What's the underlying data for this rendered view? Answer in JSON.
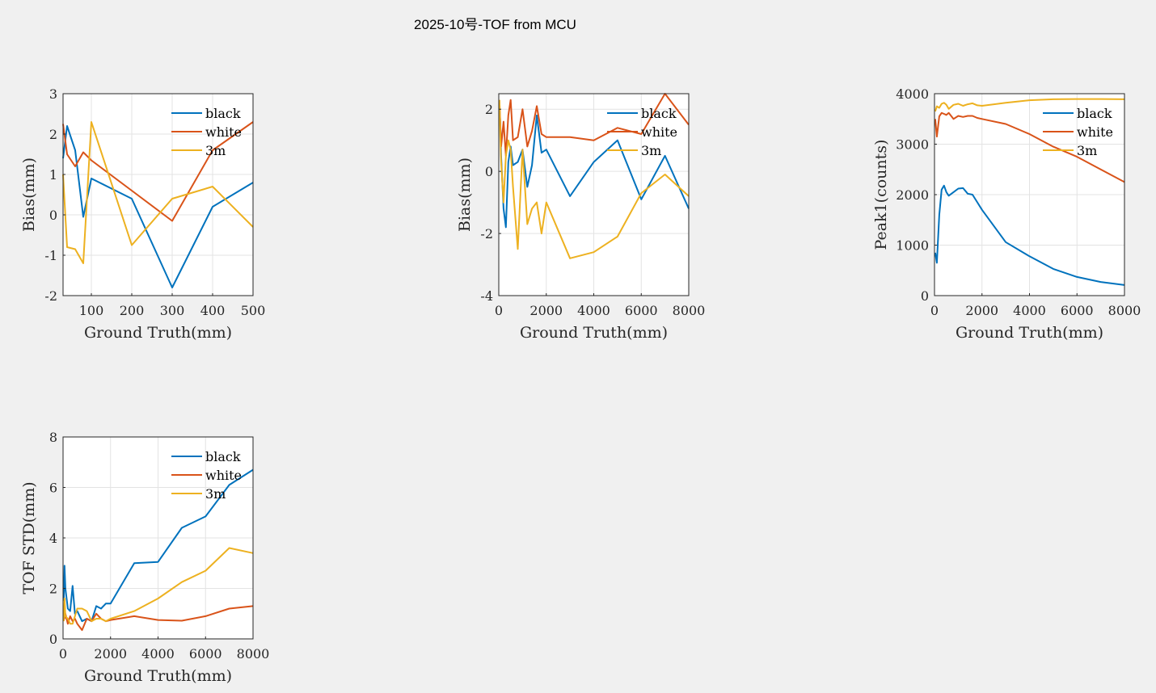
{
  "figure": {
    "title": "2025-10号-TOF from MCU"
  },
  "colors": {
    "black": "#0072BD",
    "white": "#D95319",
    "3m": "#EDB120"
  },
  "chart_data": [
    {
      "type": "line",
      "xlabel": "Ground Truth(mm)",
      "ylabel": "Bias(mm)",
      "xlim": [
        30,
        500
      ],
      "ylim": [
        -2,
        3
      ],
      "xticks": [
        100,
        200,
        300,
        400,
        500
      ],
      "yticks": [
        -2,
        -1,
        0,
        1,
        2,
        3
      ],
      "grid": true,
      "legend": "top-right",
      "series": [
        {
          "name": "black",
          "x": [
            30,
            40,
            60,
            80,
            100,
            200,
            300,
            400,
            500
          ],
          "y": [
            1.4,
            2.2,
            1.6,
            -0.05,
            0.9,
            0.4,
            -1.8,
            0.2,
            0.8
          ]
        },
        {
          "name": "white",
          "x": [
            30,
            40,
            60,
            80,
            100,
            200,
            300,
            400,
            500
          ],
          "y": [
            2.25,
            1.5,
            1.2,
            1.55,
            1.35,
            0.6,
            -0.15,
            1.6,
            2.3
          ]
        },
        {
          "name": "3m",
          "x": [
            30,
            40,
            60,
            80,
            100,
            200,
            300,
            400,
            500
          ],
          "y": [
            1.0,
            -0.8,
            -0.85,
            -1.2,
            2.3,
            -0.75,
            0.4,
            0.7,
            -0.3
          ]
        }
      ]
    },
    {
      "type": "line",
      "xlabel": "Ground Truth(mm)",
      "ylabel": "Bias(mm)",
      "xlim": [
        0,
        8000
      ],
      "ylim": [
        -4,
        2.5
      ],
      "xticks": [
        0,
        2000,
        4000,
        6000,
        8000
      ],
      "yticks": [
        -4,
        -2,
        0,
        2
      ],
      "grid": true,
      "legend": "top-right",
      "series": [
        {
          "name": "black",
          "x": [
            30,
            60,
            100,
            200,
            300,
            400,
            500,
            600,
            800,
            1000,
            1200,
            1400,
            1600,
            1800,
            2000,
            3000,
            4000,
            5000,
            6000,
            7000,
            8000
          ],
          "y": [
            2.0,
            1.6,
            0.5,
            -1.2,
            -1.8,
            0.3,
            0.8,
            0.2,
            0.3,
            0.7,
            -0.5,
            0.2,
            1.8,
            0.6,
            0.7,
            -0.8,
            0.3,
            1.0,
            -0.9,
            0.5,
            -1.2
          ]
        },
        {
          "name": "white",
          "x": [
            30,
            60,
            100,
            200,
            300,
            400,
            500,
            600,
            800,
            1000,
            1200,
            1400,
            1600,
            1800,
            2000,
            3000,
            4000,
            5000,
            6000,
            7000,
            8000
          ],
          "y": [
            2.2,
            1.6,
            0.8,
            1.6,
            0.5,
            1.8,
            2.3,
            1.0,
            1.1,
            2.0,
            0.8,
            1.3,
            2.1,
            1.2,
            1.1,
            1.1,
            1.0,
            1.4,
            1.2,
            2.5,
            1.5
          ]
        },
        {
          "name": "3m",
          "x": [
            30,
            60,
            100,
            200,
            300,
            400,
            500,
            600,
            800,
            1000,
            1200,
            1400,
            1600,
            1800,
            2000,
            3000,
            4000,
            5000,
            6000,
            7000,
            8000
          ],
          "y": [
            2.3,
            1.2,
            0.3,
            -1.0,
            0.5,
            1.0,
            0.7,
            -0.5,
            -2.5,
            0.7,
            -1.7,
            -1.2,
            -1.0,
            -2.0,
            -1.0,
            -2.8,
            -2.6,
            -2.1,
            -0.7,
            -0.1,
            -0.8
          ]
        }
      ]
    },
    {
      "type": "line",
      "xlabel": "Ground Truth(mm)",
      "ylabel": "Peak1(counts)",
      "xlim": [
        0,
        8000
      ],
      "ylim": [
        0,
        4000
      ],
      "xticks": [
        0,
        2000,
        4000,
        6000,
        8000
      ],
      "yticks": [
        0,
        1000,
        2000,
        3000,
        4000
      ],
      "grid": true,
      "legend": "top-right",
      "series": [
        {
          "name": "black",
          "x": [
            30,
            100,
            200,
            300,
            400,
            500,
            600,
            800,
            1000,
            1200,
            1400,
            1600,
            1800,
            2000,
            3000,
            4000,
            5000,
            6000,
            7000,
            8000
          ],
          "y": [
            850,
            650,
            1600,
            2100,
            2180,
            2050,
            1980,
            2050,
            2120,
            2130,
            2020,
            2000,
            1850,
            1700,
            1060,
            780,
            530,
            370,
            270,
            210
          ]
        },
        {
          "name": "white",
          "x": [
            30,
            100,
            200,
            300,
            400,
            500,
            600,
            800,
            1000,
            1200,
            1400,
            1600,
            1800,
            2000,
            3000,
            4000,
            5000,
            6000,
            7000,
            8000
          ],
          "y": [
            3500,
            3150,
            3550,
            3620,
            3600,
            3580,
            3620,
            3500,
            3560,
            3540,
            3560,
            3560,
            3520,
            3500,
            3400,
            3200,
            2950,
            2750,
            2500,
            2250
          ]
        },
        {
          "name": "3m",
          "x": [
            30,
            100,
            200,
            300,
            400,
            500,
            600,
            800,
            1000,
            1200,
            1400,
            1600,
            1800,
            2000,
            3000,
            4000,
            5000,
            6000,
            7000,
            8000
          ],
          "y": [
            3650,
            3750,
            3720,
            3800,
            3820,
            3780,
            3700,
            3780,
            3800,
            3760,
            3790,
            3810,
            3770,
            3760,
            3820,
            3870,
            3890,
            3895,
            3895,
            3890
          ]
        }
      ]
    },
    {
      "type": "line",
      "xlabel": "Ground Truth(mm)",
      "ylabel": "TOF STD(mm)",
      "xlim": [
        0,
        8000
      ],
      "ylim": [
        0,
        8
      ],
      "xticks": [
        0,
        2000,
        4000,
        6000,
        8000
      ],
      "yticks": [
        0,
        2,
        4,
        6,
        8
      ],
      "grid": true,
      "legend": "top-right",
      "series": [
        {
          "name": "black",
          "x": [
            30,
            60,
            100,
            200,
            300,
            400,
            500,
            600,
            800,
            1000,
            1200,
            1400,
            1600,
            1800,
            2000,
            3000,
            4000,
            5000,
            6000,
            7000,
            8000
          ],
          "y": [
            1.5,
            2.9,
            2.0,
            1.2,
            1.1,
            2.1,
            1.0,
            1.1,
            0.7,
            0.8,
            0.7,
            1.3,
            1.2,
            1.4,
            1.4,
            3.0,
            3.05,
            4.4,
            4.85,
            6.1,
            6.7
          ]
        },
        {
          "name": "white",
          "x": [
            30,
            60,
            100,
            200,
            300,
            400,
            500,
            600,
            800,
            1000,
            1200,
            1400,
            1600,
            1800,
            2000,
            3000,
            4000,
            5000,
            6000,
            7000,
            8000
          ],
          "y": [
            1.3,
            0.8,
            1.0,
            0.6,
            0.9,
            0.7,
            0.8,
            0.6,
            0.35,
            0.8,
            0.7,
            1.0,
            0.8,
            0.7,
            0.75,
            0.9,
            0.75,
            0.72,
            0.9,
            1.2,
            1.3
          ]
        },
        {
          "name": "3m",
          "x": [
            30,
            60,
            100,
            200,
            300,
            400,
            500,
            600,
            800,
            1000,
            1200,
            1400,
            1600,
            1800,
            2000,
            3000,
            4000,
            5000,
            6000,
            7000,
            8000
          ],
          "y": [
            0.7,
            1.6,
            0.9,
            0.8,
            0.6,
            0.6,
            0.9,
            1.2,
            1.2,
            1.1,
            0.7,
            0.8,
            0.8,
            0.7,
            0.8,
            1.1,
            1.6,
            2.25,
            2.7,
            3.6,
            3.4
          ]
        }
      ]
    }
  ]
}
